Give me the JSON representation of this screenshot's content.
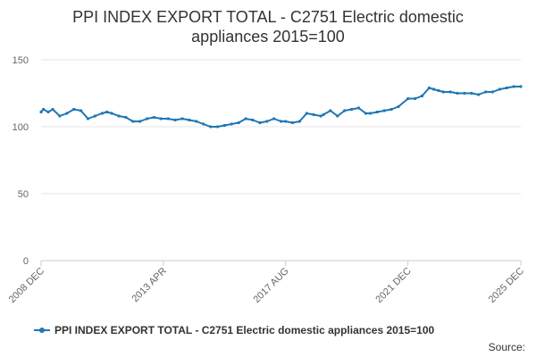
{
  "title_line1": "PPI INDEX EXPORT TOTAL - C2751 Electric domestic",
  "title_line2": "appliances 2015=100",
  "source_label": "Source:",
  "colors": {
    "series": "#1f77b4",
    "grid": "#e6e6e6",
    "axis": "#cccccc"
  },
  "chart_data": {
    "type": "line",
    "title": "PPI INDEX EXPORT TOTAL - C2751 Electric domestic appliances 2015=100",
    "xlabel": "",
    "ylabel": "",
    "ylim": [
      0,
      150
    ],
    "yticks": [
      0,
      50,
      100,
      150
    ],
    "grid": true,
    "legend_position": "bottom",
    "x_tick_labels": [
      {
        "label": "2008 DEC",
        "year": 2008.917
      },
      {
        "label": "2013 APR",
        "year": 2013.25
      },
      {
        "label": "2017 AUG",
        "year": 2017.583
      },
      {
        "label": "2021 DEC",
        "year": 2021.917
      },
      {
        "label": "2025 DEC",
        "year": 2025.917
      }
    ],
    "series": [
      {
        "name": "PPI INDEX EXPORT TOTAL - C2751 Electric domestic appliances 2015=100",
        "x": [
          2008.917,
          2009.0,
          2009.17,
          2009.33,
          2009.58,
          2009.83,
          2010.08,
          2010.33,
          2010.58,
          2010.83,
          2011.08,
          2011.25,
          2011.42,
          2011.67,
          2011.92,
          2012.17,
          2012.42,
          2012.67,
          2012.92,
          2013.17,
          2013.42,
          2013.67,
          2013.92,
          2014.17,
          2014.42,
          2014.67,
          2014.92,
          2015.17,
          2015.42,
          2015.67,
          2015.92,
          2016.17,
          2016.42,
          2016.67,
          2016.92,
          2017.17,
          2017.42,
          2017.58,
          2017.83,
          2018.08,
          2018.33,
          2018.58,
          2018.83,
          2018.92,
          2019.17,
          2019.42,
          2019.67,
          2019.92,
          2020.17,
          2020.42,
          2020.58,
          2020.83,
          2021.08,
          2021.33,
          2021.58,
          2021.92,
          2022.17,
          2022.42,
          2022.67,
          2022.83,
          2023.0,
          2023.17,
          2023.42,
          2023.67,
          2023.92,
          2024.17,
          2024.42,
          2024.67,
          2024.92,
          2025.17,
          2025.42,
          2025.67,
          2025.917
        ],
        "values": [
          111,
          113,
          111,
          113,
          108,
          110,
          113,
          112,
          106,
          108,
          110,
          111,
          110,
          108,
          107,
          104,
          104,
          106,
          107,
          106,
          106,
          105,
          106,
          105,
          104,
          102,
          100,
          100,
          101,
          102,
          103,
          106,
          105,
          103,
          104,
          106,
          104,
          104,
          103,
          104,
          110,
          109,
          108,
          109,
          112,
          108,
          112,
          113,
          114,
          110,
          110,
          111,
          112,
          113,
          115,
          121,
          121,
          123,
          129,
          128,
          127,
          126,
          126,
          125,
          125,
          125,
          124,
          126,
          126,
          128,
          129,
          130,
          130
        ]
      }
    ]
  }
}
